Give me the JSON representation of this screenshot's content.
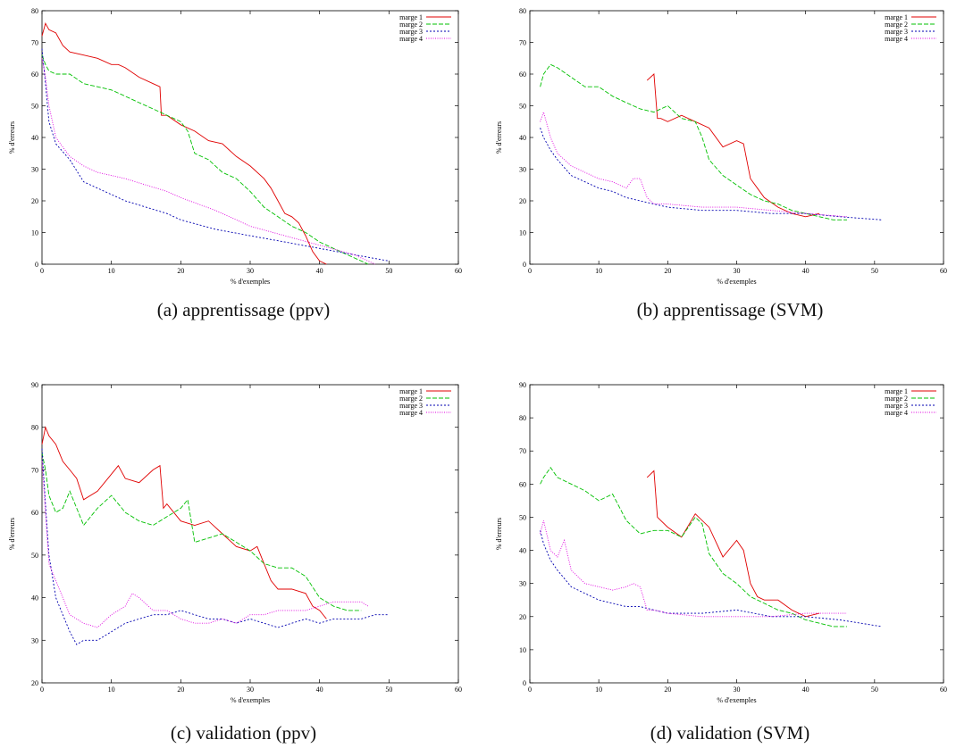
{
  "series_colors": [
    "#e00000",
    "#00c000",
    "#0000b0",
    "#e000e0"
  ],
  "chart_data": [
    {
      "type": "line",
      "caption": "(a) apprentissage (ppv)",
      "xlabel": "% d'exemples",
      "ylabel": "% d'erreurs",
      "xlim": [
        0,
        60
      ],
      "ylim": [
        0,
        80
      ],
      "xticks": [
        0,
        10,
        20,
        30,
        40,
        50,
        60
      ],
      "yticks": [
        0,
        10,
        20,
        30,
        40,
        50,
        60,
        70,
        80
      ],
      "legend": "top-right",
      "series": [
        {
          "name": "marge 1",
          "x": [
            0,
            0.5,
            1,
            2,
            3,
            4,
            6,
            8,
            10,
            11,
            12,
            14,
            16,
            17,
            17.2,
            18,
            20,
            22,
            24,
            26,
            28,
            30,
            32,
            33,
            34,
            35,
            36,
            37,
            38,
            39,
            40,
            41
          ],
          "y": [
            72,
            76,
            74,
            73,
            69,
            67,
            66,
            65,
            63,
            63,
            62,
            59,
            57,
            56,
            47,
            47,
            44,
            42,
            39,
            38,
            34,
            31,
            27,
            24,
            20,
            16,
            15,
            13,
            9,
            4,
            1,
            0
          ]
        },
        {
          "name": "marge 2",
          "x": [
            0,
            0.5,
            1,
            2,
            4,
            6,
            8,
            10,
            12,
            14,
            16,
            18,
            20,
            21,
            22,
            24,
            26,
            28,
            30,
            32,
            34,
            36,
            38,
            40,
            42,
            44,
            46,
            47
          ],
          "y": [
            66,
            63,
            61,
            60,
            60,
            57,
            56,
            55,
            53,
            51,
            49,
            47,
            45,
            42,
            35,
            33,
            29,
            27,
            23,
            18,
            15,
            12,
            10,
            7,
            5,
            3,
            1,
            0
          ]
        },
        {
          "name": "marge 3",
          "x": [
            0,
            0.5,
            1,
            2,
            4,
            6,
            8,
            10,
            12,
            15,
            18,
            20,
            25,
            30,
            35,
            40,
            45,
            50
          ],
          "y": [
            68,
            57,
            45,
            38,
            33,
            26,
            24,
            22,
            20,
            18,
            16,
            14,
            11,
            9,
            7,
            5,
            3,
            1
          ]
        },
        {
          "name": "marge 4",
          "x": [
            0,
            0.5,
            1,
            2,
            4,
            6,
            8,
            10,
            12,
            15,
            18,
            20,
            25,
            30,
            35,
            40,
            45,
            48
          ],
          "y": [
            65,
            59,
            50,
            40,
            34,
            31,
            29,
            28,
            27,
            25,
            23,
            21,
            17,
            12,
            9,
            6,
            3,
            0
          ]
        }
      ]
    },
    {
      "type": "line",
      "caption": "(b) apprentissage (SVM)",
      "xlabel": "% d'exemples",
      "ylabel": "% d'erreurs",
      "xlim": [
        0,
        60
      ],
      "ylim": [
        0,
        80
      ],
      "xticks": [
        0,
        10,
        20,
        30,
        40,
        50,
        60
      ],
      "yticks": [
        0,
        10,
        20,
        30,
        40,
        50,
        60,
        70,
        80
      ],
      "legend": "top-right",
      "series": [
        {
          "name": "marge 1",
          "x": [
            17,
            18,
            18.5,
            19,
            20,
            22,
            24,
            26,
            28,
            30,
            31,
            32,
            33,
            34,
            36,
            38,
            40,
            42
          ],
          "y": [
            58,
            60,
            46,
            46,
            45,
            47,
            45,
            43,
            37,
            39,
            38,
            27,
            24,
            21,
            18,
            16,
            15,
            16
          ]
        },
        {
          "name": "marge 2",
          "x": [
            1.5,
            2,
            3,
            4,
            6,
            8,
            10,
            12,
            14,
            16,
            18,
            20,
            22,
            24,
            25,
            26,
            28,
            30,
            32,
            34,
            36,
            38,
            40,
            42,
            44,
            46
          ],
          "y": [
            56,
            60,
            63,
            62,
            59,
            56,
            56,
            53,
            51,
            49,
            48,
            50,
            46,
            45,
            40,
            33,
            28,
            25,
            22,
            20,
            19,
            17,
            16,
            15,
            14,
            14
          ]
        },
        {
          "name": "marge 3",
          "x": [
            1.5,
            2,
            3,
            4,
            6,
            8,
            10,
            12,
            14,
            16,
            18,
            20,
            25,
            30,
            35,
            40,
            45,
            51
          ],
          "y": [
            43,
            40,
            36,
            33,
            28,
            26,
            24,
            23,
            21,
            20,
            19,
            18,
            17,
            17,
            16,
            16,
            15,
            14
          ]
        },
        {
          "name": "marge 4",
          "x": [
            1.5,
            2,
            3,
            4,
            6,
            8,
            10,
            12,
            14,
            15,
            16,
            17,
            18,
            20,
            25,
            30,
            35,
            40,
            46
          ],
          "y": [
            45,
            48,
            40,
            35,
            31,
            29,
            27,
            26,
            24,
            27,
            27,
            21,
            19,
            19,
            18,
            18,
            17,
            16,
            15
          ]
        }
      ]
    },
    {
      "type": "line",
      "caption": "(c) validation (ppv)",
      "xlabel": "% d'exemples",
      "ylabel": "% d'erreurs",
      "xlim": [
        0,
        60
      ],
      "ylim": [
        20,
        90
      ],
      "xticks": [
        0,
        10,
        20,
        30,
        40,
        50,
        60
      ],
      "yticks": [
        20,
        30,
        40,
        50,
        60,
        70,
        80,
        90
      ],
      "legend": "top-right",
      "series": [
        {
          "name": "marge 1",
          "x": [
            0,
            0.5,
            1,
            2,
            3,
            4,
            5,
            6,
            8,
            10,
            11,
            12,
            14,
            16,
            17,
            17.5,
            18,
            20,
            22,
            24,
            26,
            28,
            30,
            31,
            32,
            33,
            34,
            36,
            38,
            39,
            40,
            41
          ],
          "y": [
            76,
            80,
            78,
            76,
            72,
            70,
            68,
            63,
            65,
            69,
            71,
            68,
            67,
            70,
            71,
            61,
            62,
            58,
            57,
            58,
            55,
            52,
            51,
            52,
            48,
            44,
            42,
            42,
            41,
            38,
            37,
            35
          ]
        },
        {
          "name": "marge 2",
          "x": [
            0,
            0.5,
            1,
            2,
            3,
            4,
            6,
            8,
            10,
            12,
            14,
            16,
            18,
            20,
            21,
            22,
            24,
            26,
            28,
            30,
            32,
            34,
            36,
            38,
            40,
            42,
            44,
            46
          ],
          "y": [
            74,
            70,
            64,
            60,
            61,
            65,
            57,
            61,
            64,
            60,
            58,
            57,
            59,
            61,
            63,
            53,
            54,
            55,
            53,
            51,
            48,
            47,
            47,
            45,
            40,
            38,
            37,
            37
          ]
        },
        {
          "name": "marge 3",
          "x": [
            0,
            0.5,
            1,
            2,
            3,
            4,
            5,
            6,
            8,
            10,
            12,
            14,
            16,
            18,
            20,
            22,
            24,
            26,
            28,
            30,
            32,
            34,
            36,
            38,
            40,
            42,
            44,
            46,
            48,
            50
          ],
          "y": [
            75,
            62,
            50,
            40,
            36,
            32,
            29,
            30,
            30,
            32,
            34,
            35,
            36,
            36,
            37,
            36,
            35,
            35,
            34,
            35,
            34,
            33,
            34,
            35,
            34,
            35,
            35,
            35,
            36,
            36
          ]
        },
        {
          "name": "marge 4",
          "x": [
            0,
            0.5,
            1,
            2,
            3,
            4,
            6,
            8,
            10,
            12,
            13,
            14,
            16,
            18,
            20,
            22,
            24,
            26,
            28,
            30,
            32,
            34,
            36,
            38,
            40,
            42,
            44,
            46,
            47
          ],
          "y": [
            72,
            60,
            48,
            44,
            40,
            36,
            34,
            33,
            36,
            38,
            41,
            40,
            37,
            37,
            35,
            34,
            34,
            35,
            34,
            36,
            36,
            37,
            37,
            37,
            38,
            39,
            39,
            39,
            38
          ]
        }
      ]
    },
    {
      "type": "line",
      "caption": "(d) validation (SVM)",
      "xlabel": "% d'exemples",
      "ylabel": "% d'erreurs",
      "xlim": [
        0,
        60
      ],
      "ylim": [
        0,
        90
      ],
      "xticks": [
        0,
        10,
        20,
        30,
        40,
        50,
        60
      ],
      "yticks": [
        0,
        10,
        20,
        30,
        40,
        50,
        60,
        70,
        80,
        90
      ],
      "legend": "top-right",
      "series": [
        {
          "name": "marge 1",
          "x": [
            17,
            18,
            18.5,
            19,
            20,
            22,
            24,
            26,
            28,
            30,
            31,
            32,
            33,
            34,
            36,
            38,
            40,
            42
          ],
          "y": [
            62,
            64,
            50,
            49,
            47,
            44,
            51,
            47,
            38,
            43,
            40,
            30,
            26,
            25,
            25,
            22,
            20,
            21
          ]
        },
        {
          "name": "marge 2",
          "x": [
            1.5,
            2,
            3,
            4,
            6,
            8,
            10,
            12,
            14,
            16,
            18,
            20,
            22,
            24,
            25,
            26,
            28,
            30,
            32,
            34,
            36,
            38,
            40,
            42,
            44,
            46
          ],
          "y": [
            60,
            62,
            65,
            62,
            60,
            58,
            55,
            57,
            49,
            45,
            46,
            46,
            44,
            50,
            48,
            39,
            33,
            30,
            26,
            24,
            22,
            21,
            19,
            18,
            17,
            17
          ]
        },
        {
          "name": "marge 3",
          "x": [
            1.5,
            2,
            3,
            4,
            6,
            8,
            10,
            12,
            14,
            16,
            18,
            20,
            25,
            30,
            35,
            40,
            45,
            51
          ],
          "y": [
            46,
            42,
            37,
            34,
            29,
            27,
            25,
            24,
            23,
            23,
            22,
            21,
            21,
            22,
            20,
            20,
            19,
            17
          ]
        },
        {
          "name": "marge 4",
          "x": [
            1.5,
            2,
            3,
            4,
            5,
            6,
            8,
            10,
            12,
            14,
            15,
            16,
            17,
            18,
            20,
            25,
            30,
            35,
            40,
            46
          ],
          "y": [
            45,
            49,
            40,
            38,
            43,
            34,
            30,
            29,
            28,
            29,
            30,
            29,
            22,
            22,
            21,
            20,
            20,
            20,
            21,
            21
          ]
        }
      ]
    }
  ]
}
